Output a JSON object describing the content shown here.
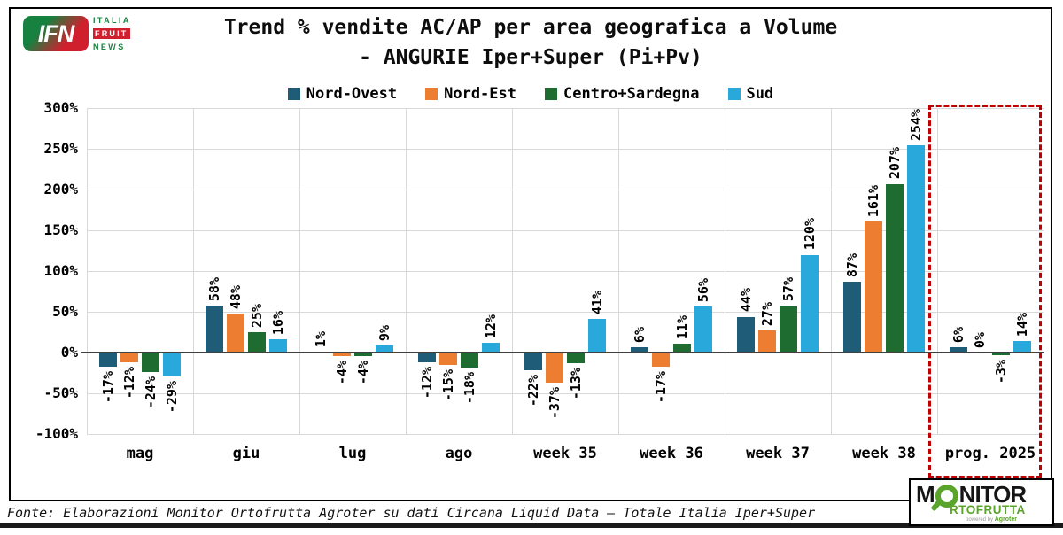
{
  "header": {
    "logo": {
      "abbr": "IFN",
      "line1": "ITALIA",
      "line2": "FRUIT",
      "line3": "NEWS"
    },
    "title_line1": "Trend % vendite AC/AP per area geografica a Volume",
    "title_line2": "- ANGURIE Iper+Super (Pi+Pv)"
  },
  "chart_data": {
    "type": "bar",
    "title": "Trend % vendite AC/AP per area geografica a Volume - ANGURIE Iper+Super (Pi+Pv)",
    "categories": [
      "mag",
      "giu",
      "lug",
      "ago",
      "week 35",
      "week 36",
      "week 37",
      "week 38",
      "prog. 2025"
    ],
    "series": [
      {
        "name": "Nord-Ovest",
        "color": "#1f5c78",
        "values": [
          -17,
          58,
          1,
          -12,
          -22,
          6,
          44,
          87,
          6
        ]
      },
      {
        "name": "Nord-Est",
        "color": "#ed7d31",
        "values": [
          -12,
          48,
          -4,
          -15,
          -37,
          -17,
          27,
          161,
          0
        ]
      },
      {
        "name": "Centro+Sardegna",
        "color": "#1e6c30",
        "values": [
          -24,
          25,
          -4,
          -18,
          -13,
          11,
          57,
          207,
          -3
        ]
      },
      {
        "name": "Sud",
        "color": "#29a8dc",
        "values": [
          -29,
          16,
          9,
          12,
          41,
          56,
          120,
          254,
          14
        ]
      }
    ],
    "ylim": [
      -100,
      300
    ],
    "ytick_step": 50,
    "grid": true,
    "legend_position": "top",
    "label_format": "{v}%",
    "highlight_category": "prog. 2025",
    "highlight_color": "#c00000"
  },
  "footer": {
    "source": "Fonte: Elaborazioni Monitor Ortofrutta Agroter su dati Circana Liquid Data – Totale Italia Iper+Super",
    "logo": {
      "word_m": "M",
      "word_nitor": "NITOR",
      "word2": "RTOFRUTTA",
      "powered": "powered by",
      "brand": "Agroter"
    }
  }
}
